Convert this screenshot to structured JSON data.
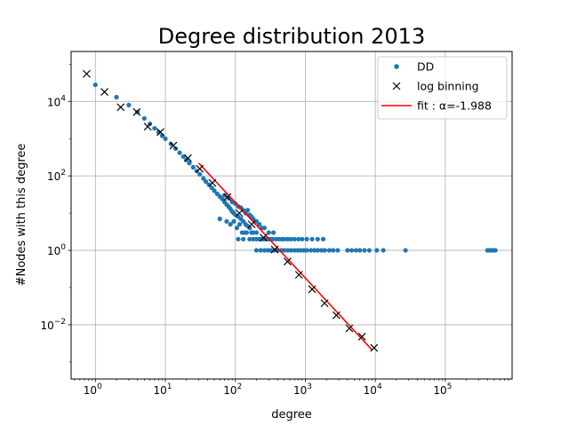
{
  "chart_data": {
    "type": "scatter",
    "title": "Degree distribution 2013",
    "xlabel": "degree",
    "ylabel": "#Nodes with this degree",
    "xscale": "log",
    "yscale": "log",
    "xlim": [
      0.45,
      900000
    ],
    "ylim": [
      0.00035,
      220000
    ],
    "grid": true,
    "legend_position": "top-right",
    "x_ticks": [
      {
        "base": "10",
        "exp": "0",
        "value": 1
      },
      {
        "base": "10",
        "exp": "1",
        "value": 10
      },
      {
        "base": "10",
        "exp": "2",
        "value": 100
      },
      {
        "base": "10",
        "exp": "3",
        "value": 1000
      },
      {
        "base": "10",
        "exp": "4",
        "value": 10000
      },
      {
        "base": "10",
        "exp": "5",
        "value": 100000
      }
    ],
    "y_ticks": [
      {
        "base": "10",
        "exp": "−2",
        "value": 0.01
      },
      {
        "base": "10",
        "exp": "0",
        "value": 1
      },
      {
        "base": "10",
        "exp": "2",
        "value": 100
      },
      {
        "base": "10",
        "exp": "4",
        "value": 10000
      }
    ],
    "series": [
      {
        "name": "DD",
        "marker": "dot",
        "color": "#1f77b4",
        "points": [
          [
            1,
            28000
          ],
          [
            2,
            13000
          ],
          [
            3,
            8000
          ],
          [
            4,
            5200
          ],
          [
            5,
            3500
          ],
          [
            6,
            2500
          ],
          [
            7,
            1900
          ],
          [
            8,
            1500
          ],
          [
            9,
            1200
          ],
          [
            10,
            1000
          ],
          [
            12,
            720
          ],
          [
            14,
            540
          ],
          [
            16,
            420
          ],
          [
            18,
            330
          ],
          [
            20,
            270
          ],
          [
            22,
            220
          ],
          [
            25,
            170
          ],
          [
            28,
            135
          ],
          [
            31,
            110
          ],
          [
            35,
            85
          ],
          [
            38,
            70
          ],
          [
            42,
            58
          ],
          [
            46,
            48
          ],
          [
            50,
            40
          ],
          [
            55,
            33
          ],
          [
            60,
            28
          ],
          [
            65,
            24
          ],
          [
            70,
            20
          ],
          [
            75,
            17
          ],
          [
            80,
            15
          ],
          [
            85,
            13
          ],
          [
            90,
            11
          ],
          [
            95,
            10
          ],
          [
            100,
            9
          ],
          [
            110,
            8
          ],
          [
            120,
            7
          ],
          [
            130,
            6
          ],
          [
            140,
            5
          ],
          [
            150,
            4.5
          ],
          [
            160,
            4
          ],
          [
            170,
            3
          ],
          [
            180,
            3
          ],
          [
            200,
            3
          ],
          [
            220,
            2
          ],
          [
            250,
            2
          ],
          [
            280,
            2
          ],
          [
            320,
            2
          ],
          [
            70,
            30
          ],
          [
            80,
            25
          ],
          [
            90,
            20
          ],
          [
            100,
            18
          ],
          [
            110,
            15
          ],
          [
            120,
            14
          ],
          [
            130,
            12
          ],
          [
            140,
            10
          ],
          [
            150,
            12
          ],
          [
            160,
            9
          ],
          [
            170,
            8
          ],
          [
            180,
            7
          ],
          [
            190,
            6
          ],
          [
            200,
            6
          ],
          [
            220,
            5
          ],
          [
            240,
            4
          ],
          [
            260,
            4
          ],
          [
            300,
            3
          ],
          [
            350,
            3
          ],
          [
            60,
            7
          ],
          [
            75,
            6
          ],
          [
            85,
            5
          ],
          [
            95,
            6
          ],
          [
            105,
            4
          ],
          [
            115,
            5
          ],
          [
            125,
            3
          ],
          [
            135,
            3
          ],
          [
            145,
            3
          ],
          [
            110,
            2
          ],
          [
            130,
            2
          ],
          [
            160,
            2
          ],
          [
            180,
            2
          ],
          [
            200,
            2
          ],
          [
            230,
            2
          ],
          [
            260,
            2
          ],
          [
            300,
            2
          ],
          [
            340,
            2
          ],
          [
            380,
            2
          ],
          [
            420,
            2
          ],
          [
            460,
            2
          ],
          [
            500,
            2
          ],
          [
            560,
            2
          ],
          [
            620,
            2
          ],
          [
            700,
            2
          ],
          [
            800,
            2
          ],
          [
            900,
            2
          ],
          [
            1050,
            2
          ],
          [
            1250,
            2
          ],
          [
            1500,
            2
          ],
          [
            1800,
            2
          ],
          [
            200,
            1
          ],
          [
            230,
            1
          ],
          [
            260,
            1
          ],
          [
            290,
            1
          ],
          [
            320,
            1
          ],
          [
            360,
            1
          ],
          [
            400,
            1
          ],
          [
            450,
            1
          ],
          [
            500,
            1
          ],
          [
            560,
            1
          ],
          [
            620,
            1
          ],
          [
            700,
            1
          ],
          [
            780,
            1
          ],
          [
            860,
            1
          ],
          [
            950,
            1
          ],
          [
            1050,
            1
          ],
          [
            1200,
            1
          ],
          [
            1350,
            1
          ],
          [
            1500,
            1
          ],
          [
            1700,
            1
          ],
          [
            1900,
            1
          ],
          [
            2200,
            1
          ],
          [
            2500,
            1
          ],
          [
            2900,
            1
          ],
          [
            4000,
            1
          ],
          [
            4600,
            1
          ],
          [
            5300,
            1
          ],
          [
            6000,
            1
          ],
          [
            7000,
            1
          ],
          [
            8200,
            1
          ],
          [
            10500,
            1
          ],
          [
            13000,
            1
          ],
          [
            27000,
            1
          ],
          [
            400000,
            1
          ],
          [
            430000,
            1
          ],
          [
            460000,
            1
          ],
          [
            490000,
            1
          ],
          [
            520000,
            1
          ]
        ]
      },
      {
        "name": "log binning",
        "marker": "x",
        "color": "#000000",
        "points": [
          [
            0.75,
            55000
          ],
          [
            1.35,
            18000
          ],
          [
            2.3,
            7000
          ],
          [
            3.9,
            5200
          ],
          [
            5.6,
            2100
          ],
          [
            8.5,
            1500
          ],
          [
            13,
            650
          ],
          [
            21,
            300
          ],
          [
            31,
            155
          ],
          [
            47,
            65
          ],
          [
            77,
            27
          ],
          [
            114,
            10
          ],
          [
            171,
            5
          ],
          [
            253,
            2.2
          ],
          [
            365,
            1.05
          ],
          [
            556,
            0.5
          ],
          [
            810,
            0.22
          ],
          [
            1250,
            0.09
          ],
          [
            1880,
            0.038
          ],
          [
            2780,
            0.018
          ],
          [
            4250,
            0.008
          ],
          [
            6450,
            0.0048
          ],
          [
            9600,
            0.0024
          ]
        ]
      },
      {
        "name": "fit : α=-1.988",
        "type": "line",
        "color": "#ff0000",
        "points": [
          [
            30,
            220
          ],
          [
            9000,
            0.0021
          ]
        ]
      }
    ]
  }
}
